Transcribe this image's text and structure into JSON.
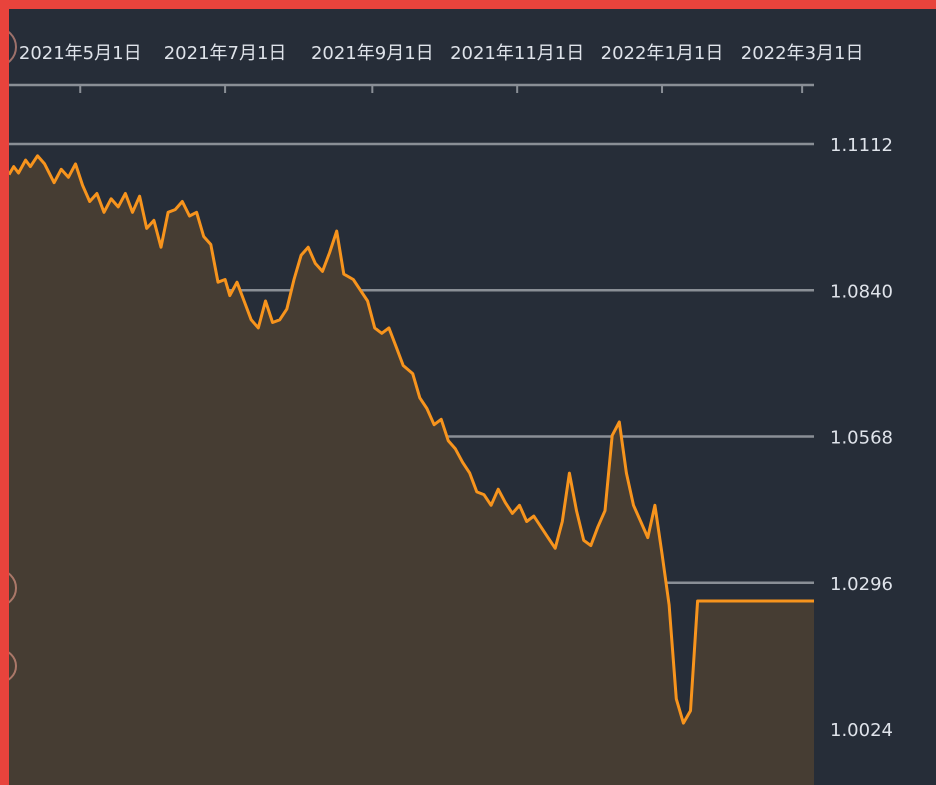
{
  "colors": {
    "background": "#262d38",
    "frame": "#e8433c",
    "line": "#f7941d",
    "area_fill": "#463d33",
    "gridline": "#8a8f96",
    "text": "#dfe3ea"
  },
  "chart_data": {
    "type": "area",
    "title": "",
    "xlabel": "",
    "ylabel": "",
    "x_axis_position": "top",
    "y_axis_position": "right",
    "grid": true,
    "xlim": [
      "2021-04-01",
      "2022-03-06"
    ],
    "ylim": [
      1.0024,
      1.1112
    ],
    "x_ticks": [
      {
        "date": "2021-05-01",
        "label": "2021年5月1日"
      },
      {
        "date": "2021-07-01",
        "label": "2021年7月1日"
      },
      {
        "date": "2021-09-01",
        "label": "2021年9月1日"
      },
      {
        "date": "2021-11-01",
        "label": "2021年11月1日"
      },
      {
        "date": "2022-01-01",
        "label": "2022年1月1日"
      },
      {
        "date": "2022-03-01",
        "label": "2022年3月1日"
      }
    ],
    "y_ticks": [
      {
        "value": 1.1112,
        "label": "1.1112"
      },
      {
        "value": 1.084,
        "label": "1.0840"
      },
      {
        "value": 1.0568,
        "label": "1.0568"
      },
      {
        "value": 1.0296,
        "label": "1.0296"
      },
      {
        "value": 1.0024,
        "label": "1.0024"
      }
    ],
    "series": [
      {
        "x": [
          "2021-04-01",
          "2021-04-03",
          "2021-04-05",
          "2021-04-08",
          "2021-04-10",
          "2021-04-13",
          "2021-04-16",
          "2021-04-20",
          "2021-04-23",
          "2021-04-26",
          "2021-04-29",
          "2021-05-02",
          "2021-05-05",
          "2021-05-08",
          "2021-05-11",
          "2021-05-14",
          "2021-05-17",
          "2021-05-20",
          "2021-05-23",
          "2021-05-26",
          "2021-05-29",
          "2021-06-01",
          "2021-06-04",
          "2021-06-07",
          "2021-06-10",
          "2021-06-13",
          "2021-06-16",
          "2021-06-19",
          "2021-06-22",
          "2021-06-25",
          "2021-06-28",
          "2021-07-01",
          "2021-07-03",
          "2021-07-06",
          "2021-07-09",
          "2021-07-12",
          "2021-07-15",
          "2021-07-18",
          "2021-07-21",
          "2021-07-24",
          "2021-07-27",
          "2021-07-30",
          "2021-08-02",
          "2021-08-05",
          "2021-08-08",
          "2021-08-11",
          "2021-08-14",
          "2021-08-17",
          "2021-08-20",
          "2021-08-24",
          "2021-08-27",
          "2021-08-30",
          "2021-09-02",
          "2021-09-05",
          "2021-09-08",
          "2021-09-11",
          "2021-09-14",
          "2021-09-18",
          "2021-09-21",
          "2021-09-24",
          "2021-09-27",
          "2021-09-30",
          "2021-10-03",
          "2021-10-06",
          "2021-10-09",
          "2021-10-12",
          "2021-10-15",
          "2021-10-18",
          "2021-10-21",
          "2021-10-24",
          "2021-10-27",
          "2021-10-30",
          "2021-11-02",
          "2021-11-05",
          "2021-11-08",
          "2021-11-11",
          "2021-11-14",
          "2021-11-17",
          "2021-11-20",
          "2021-11-23",
          "2021-11-26",
          "2021-11-29",
          "2021-12-02",
          "2021-12-05",
          "2021-12-08",
          "2021-12-11",
          "2021-12-14",
          "2021-12-17",
          "2021-12-20",
          "2021-12-23",
          "2021-12-26",
          "2021-12-29",
          "2022-01-01",
          "2022-01-04",
          "2022-01-07",
          "2022-01-10",
          "2022-01-13",
          "2022-01-16",
          "2022-01-19",
          "2022-01-22",
          "2022-01-25",
          "2022-01-28",
          "2022-01-31",
          "2022-02-03",
          "2022-02-06",
          "2022-02-09",
          "2022-02-12",
          "2022-02-15",
          "2022-02-18",
          "2022-02-21",
          "2022-02-24",
          "2022-02-26",
          "2022-02-28",
          "2022-03-02",
          "2022-03-04",
          "2022-03-06"
        ],
        "y": [
          1.1055,
          1.107,
          1.1058,
          1.1082,
          1.107,
          1.109,
          1.1075,
          1.104,
          1.1065,
          1.105,
          1.1075,
          1.1035,
          1.1005,
          1.102,
          1.0985,
          1.101,
          1.0995,
          1.102,
          1.0985,
          1.1015,
          1.0955,
          1.097,
          1.092,
          1.0985,
          1.099,
          1.1005,
          1.0978,
          1.0985,
          1.094,
          1.0925,
          1.0855,
          1.086,
          1.083,
          1.0855,
          1.082,
          1.0785,
          1.077,
          1.082,
          1.078,
          1.0785,
          1.0805,
          1.086,
          1.0905,
          1.092,
          1.089,
          1.0875,
          1.091,
          1.095,
          1.087,
          1.086,
          1.084,
          1.082,
          1.077,
          1.076,
          1.077,
          1.0735,
          1.07,
          1.0685,
          1.064,
          1.062,
          1.059,
          1.06,
          1.056,
          1.0545,
          1.052,
          1.05,
          1.0465,
          1.046,
          1.044,
          1.047,
          1.0445,
          1.0425,
          1.044,
          1.041,
          1.042,
          1.04,
          1.038,
          1.036,
          1.041,
          1.05,
          1.043,
          1.0375,
          1.0365,
          1.04,
          1.043,
          1.057,
          1.0595,
          1.05,
          1.044,
          1.041,
          1.038,
          1.044,
          1.035,
          1.0255,
          1.008,
          1.0035,
          1.0058,
          1.0262,
          1.0262,
          1.0262,
          1.0262,
          1.0262,
          1.0262,
          1.0262,
          1.0262,
          1.0262,
          1.0262,
          1.0262,
          1.0262,
          1.0262,
          1.0262,
          1.0262,
          1.0262,
          1.0262,
          1.0262,
          1.0262
        ]
      }
    ]
  }
}
